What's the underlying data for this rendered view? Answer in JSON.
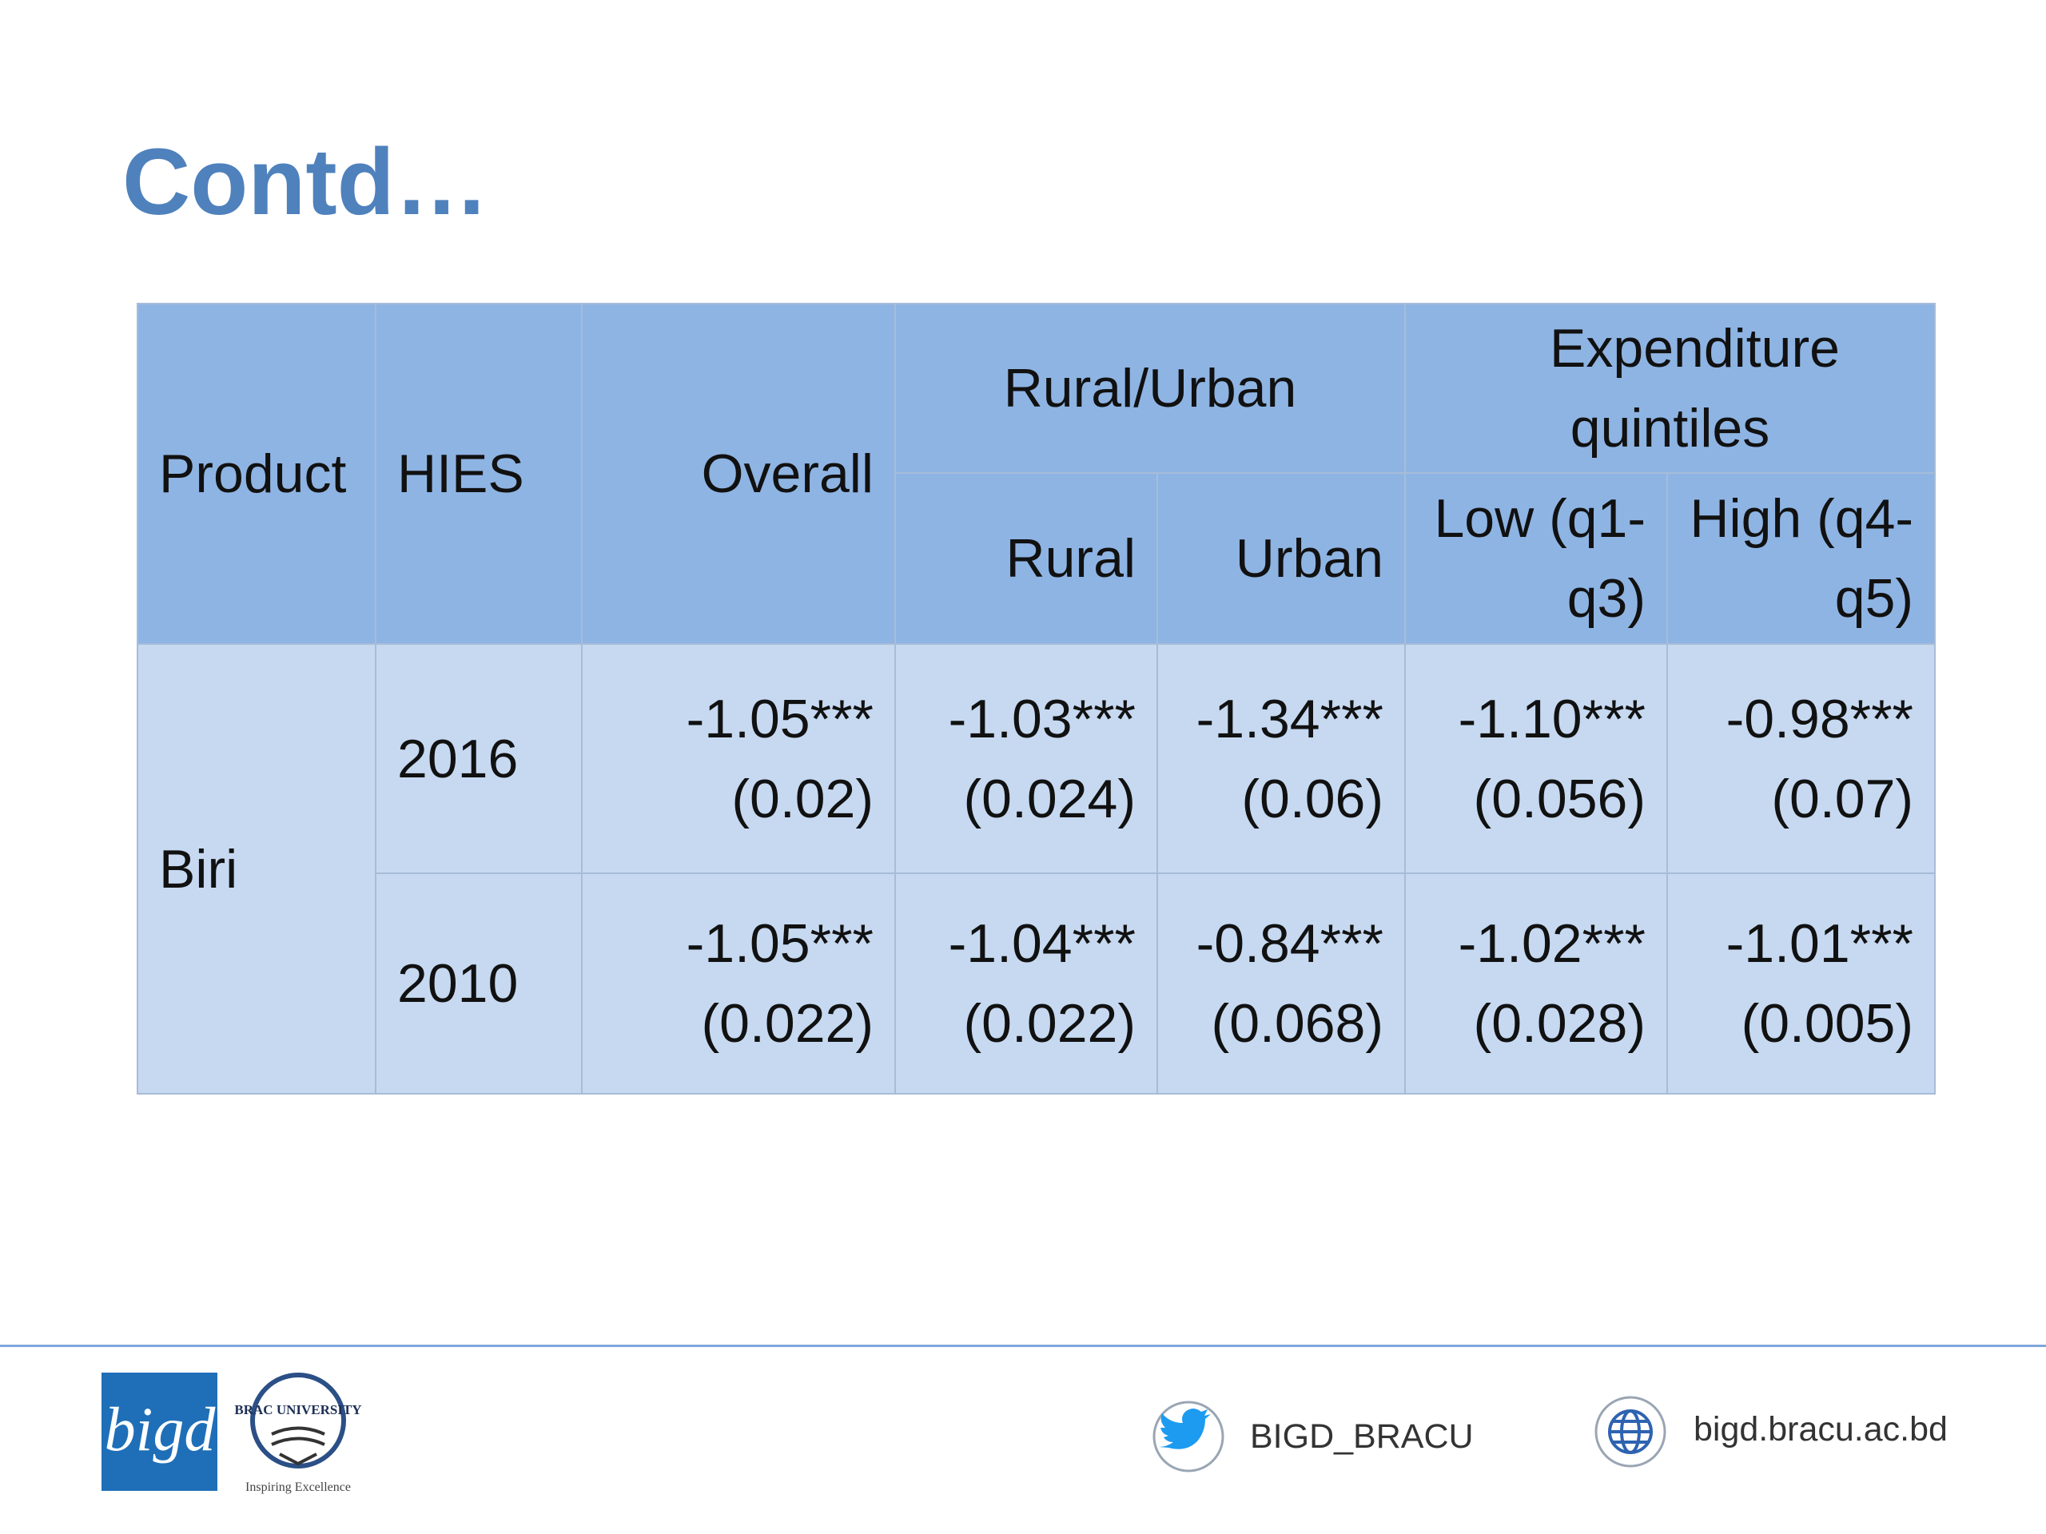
{
  "title": "Contd…",
  "table": {
    "header": {
      "product": "Product",
      "hies": "HIES",
      "overall": "Overall",
      "rural_urban": "Rural/Urban",
      "expenditure": "Expenditure quintiles",
      "rural": "Rural",
      "urban": "Urban",
      "low": "Low (q1-q3)",
      "high": "High (q4-q5)"
    },
    "product": "Biri",
    "rows": [
      {
        "hies": "2016",
        "cells": [
          [
            "-1.05***",
            "(0.02)"
          ],
          [
            "-1.03***",
            "(0.024)"
          ],
          [
            "-1.34***",
            "(0.06)"
          ],
          [
            "-1.10***",
            "(0.056)"
          ],
          [
            "-0.98***",
            "(0.07)"
          ]
        ]
      },
      {
        "hies": "2010",
        "cells": [
          [
            "-1.05***",
            "(0.022)"
          ],
          [
            "-1.04***",
            "(0.022)"
          ],
          [
            "-0.84***",
            "(0.068)"
          ],
          [
            "-1.02***",
            "(0.028)"
          ],
          [
            "-1.01***",
            "(0.005)"
          ]
        ]
      }
    ]
  },
  "footer": {
    "logo": "bigd",
    "university": "BRAC UNIVERSITY",
    "motto": "Inspiring Excellence",
    "twitter": "BIGD_BRACU",
    "website": "bigd.bracu.ac.bd"
  }
}
